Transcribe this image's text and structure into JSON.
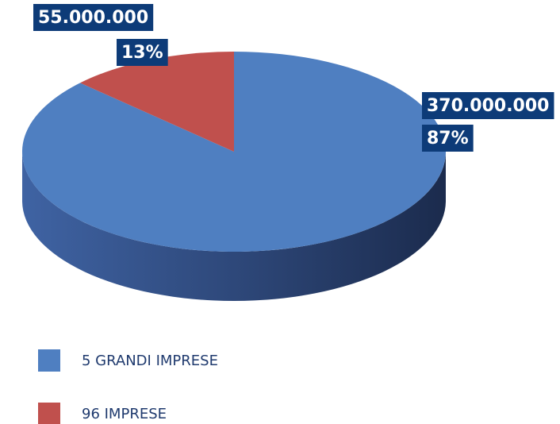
{
  "chart_data": {
    "type": "pie3d",
    "categories": [
      "5 GRANDI IMPRESE",
      "96 IMPRESE"
    ],
    "values": [
      370000000,
      55000000
    ],
    "value_labels": [
      "370.000.000",
      "55.000.000"
    ],
    "percents": [
      87,
      13
    ],
    "percent_labels": [
      "87%",
      "13%"
    ],
    "colors": [
      "#4f7fc1",
      "#c0504d"
    ],
    "legend": "bottom-left"
  }
}
